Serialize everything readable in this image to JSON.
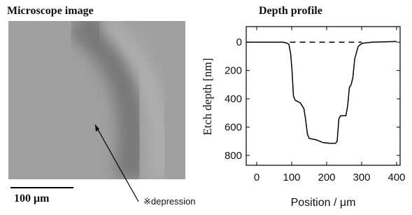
{
  "image": {
    "title": "Microscope image",
    "scale_bar": "100 μm",
    "annotation": "※depression"
  },
  "chart_data": {
    "type": "line",
    "title": "Depth profile",
    "x_label": "Position / μm",
    "y_label": "Etch depth [nm]",
    "xlim": [
      -30,
      410
    ],
    "xticks": [
      0,
      100,
      200,
      300,
      400
    ],
    "ylim": [
      -110,
      870
    ],
    "yticks": [
      0,
      200,
      400,
      600,
      800
    ],
    "y_inverted": true,
    "series": [
      {
        "color": "#000000",
        "dashed": false,
        "x": [
          -30,
          0,
          40,
          75,
          85,
          92,
          97,
          101,
          105,
          110,
          125,
          135,
          140,
          145,
          150,
          170,
          190,
          210,
          225,
          230,
          235,
          240,
          255,
          260,
          265,
          270,
          275,
          280,
          290,
          300,
          310,
          330,
          400
        ],
        "values": [
          0,
          0,
          0,
          0,
          5,
          15,
          80,
          200,
          380,
          410,
          430,
          470,
          550,
          650,
          680,
          690,
          710,
          715,
          715,
          700,
          540,
          520,
          520,
          450,
          320,
          300,
          250,
          120,
          30,
          10,
          5,
          0,
          -5
        ]
      },
      {
        "color": "#000000",
        "dashed": true,
        "x": [
          95,
          300
        ],
        "values": [
          0,
          0
        ]
      }
    ]
  }
}
